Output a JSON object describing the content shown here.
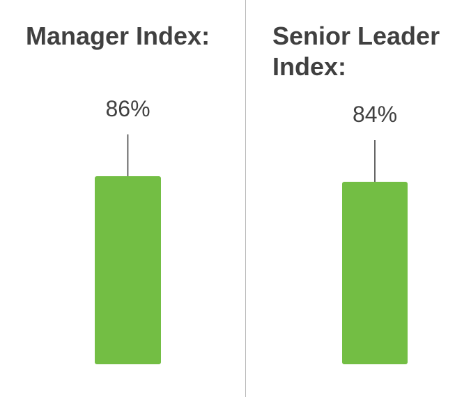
{
  "chart_data": [
    {
      "type": "bar",
      "title": "Manager Index:",
      "categories": [
        ""
      ],
      "values": [
        86
      ],
      "value_labels": [
        "86%"
      ],
      "ylim": [
        0,
        100
      ],
      "bar_color": "#73be44",
      "grid": false,
      "legend": "none"
    },
    {
      "type": "bar",
      "title": "Senior Leader Index:",
      "categories": [
        ""
      ],
      "values": [
        84
      ],
      "value_labels": [
        "84%"
      ],
      "ylim": [
        0,
        100
      ],
      "bar_color": "#73be44",
      "grid": false,
      "legend": "none"
    }
  ],
  "colors": {
    "bar": "#73be44",
    "text": "#404040",
    "leader_line": "#404040",
    "divider": "#b8b8b8"
  }
}
